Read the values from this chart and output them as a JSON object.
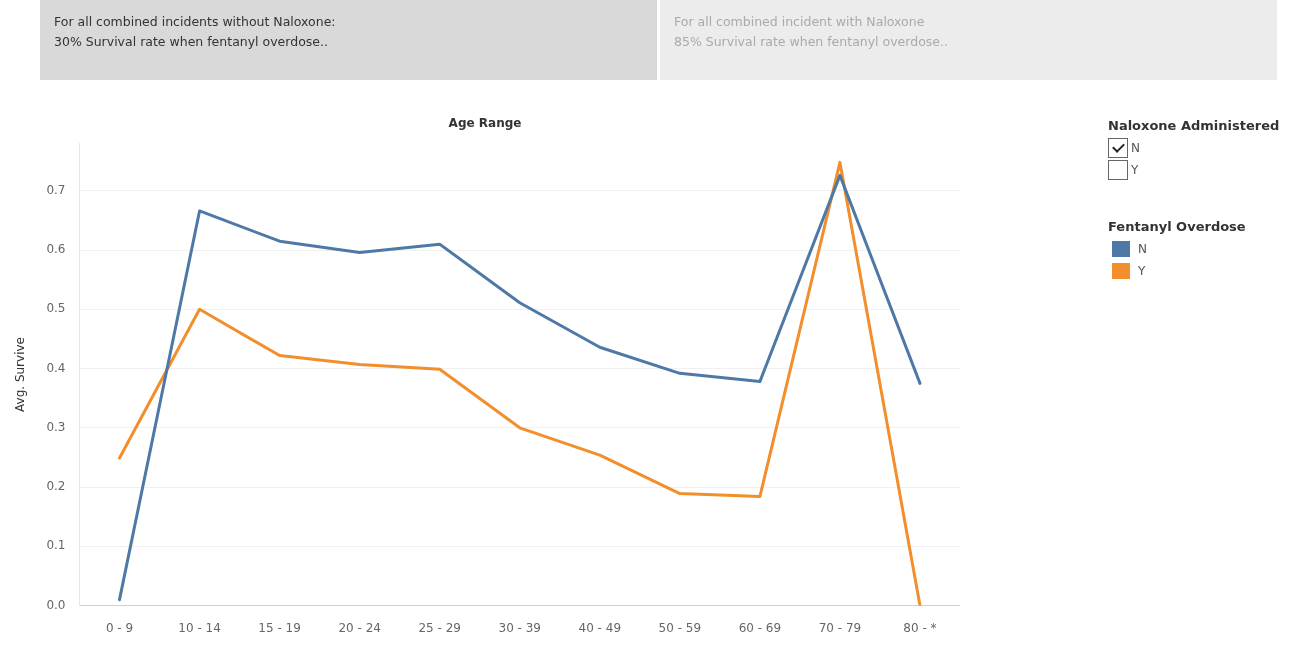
{
  "chart_data": {
    "type": "line",
    "title": "Age Range",
    "ylabel": "Avg. Survive",
    "categories": [
      "0 - 9",
      "10 - 14",
      "15 - 19",
      "20 - 24",
      "25 - 29",
      "30 - 39",
      "40 - 49",
      "50 - 59",
      "60 - 69",
      "70 - 79",
      "80 - *"
    ],
    "series": [
      {
        "name": "N",
        "color": "#4e79a7",
        "values": [
          0.01,
          0.666,
          0.615,
          0.596,
          0.61,
          0.511,
          0.436,
          0.392,
          0.378,
          0.726,
          0.375
        ]
      },
      {
        "name": "Y",
        "color": "#f28e2b",
        "values": [
          0.249,
          0.5,
          0.422,
          0.407,
          0.399,
          0.3,
          0.254,
          0.189,
          0.184,
          0.748,
          0
        ]
      }
    ],
    "ylim": [
      0,
      0.78
    ],
    "yticks": [
      {
        "value": 0,
        "label": "0.0"
      },
      0.1,
      0.2,
      0.3,
      0.4,
      0.5,
      0.6,
      0.7
    ],
    "grid": "y",
    "legend": "right",
    "legend_title": "Fentanyl Overdose",
    "marker": "none",
    "line_style": "solid",
    "annotations": [
      "For all combined incidents without Naloxone:\n30% Survival rate when fentanyl overdose..",
      "For all combined incident with Naloxone\n85% Survival rate when fentanyl overdose..",
      "Naloxone Administered",
      "N",
      "Y"
    ]
  }
}
